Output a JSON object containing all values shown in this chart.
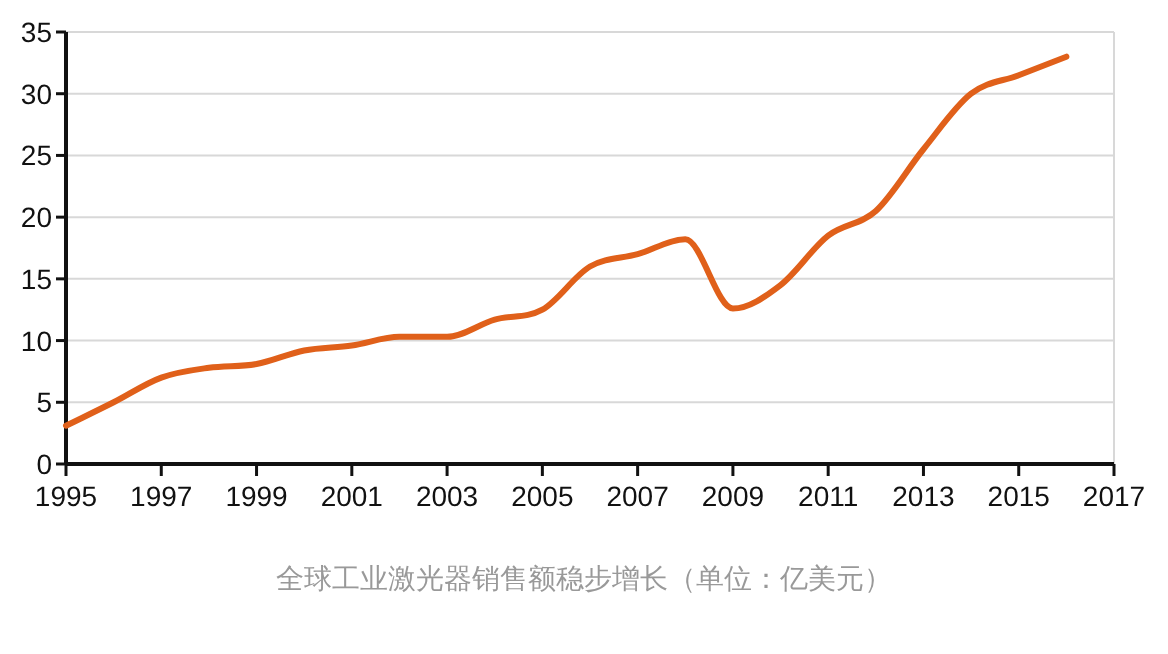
{
  "chart_data": {
    "type": "line",
    "x": [
      1995,
      1996,
      1997,
      1998,
      1999,
      2000,
      2001,
      2002,
      2003,
      2004,
      2005,
      2006,
      2007,
      2008,
      2009,
      2010,
      2011,
      2012,
      2013,
      2014,
      2015,
      2016
    ],
    "series": [
      {
        "color": "#e0601a",
        "values": [
          3.1,
          5.0,
          7.0,
          7.8,
          8.1,
          9.2,
          9.6,
          10.3,
          10.3,
          11.7,
          12.5,
          16.0,
          17.0,
          18.2,
          12.6,
          14.5,
          18.5,
          20.5,
          25.5,
          30.0,
          31.5,
          33.0
        ]
      }
    ],
    "xlim": [
      1995,
      2017
    ],
    "ylim": [
      0,
      35
    ],
    "xticks": [
      1995,
      1997,
      1999,
      2001,
      2003,
      2005,
      2007,
      2009,
      2011,
      2013,
      2015,
      2017
    ],
    "yticks": [
      0,
      5,
      10,
      15,
      20,
      25,
      30,
      35
    ],
    "grid": "y",
    "line_style": "solid",
    "marker": "none",
    "annotations": [
      "全球工业激光器销售额稳步增长（单位：亿美元）"
    ]
  }
}
